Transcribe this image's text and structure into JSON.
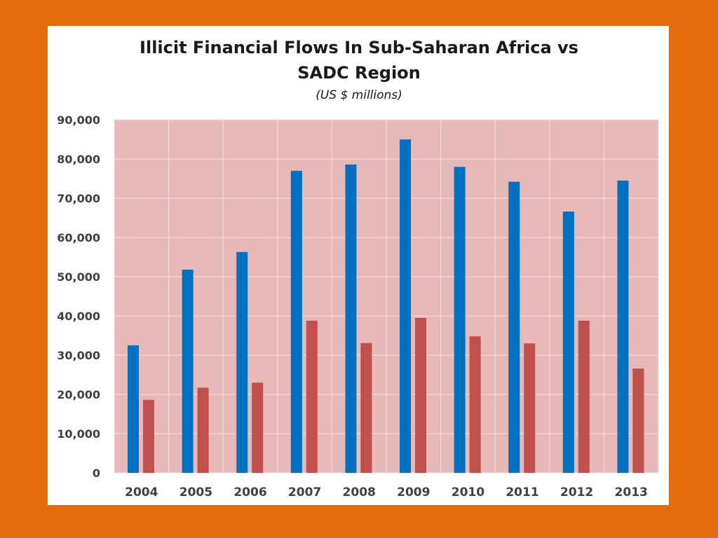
{
  "colors": {
    "background": "#E36C0A",
    "panel": "#FFFFFF",
    "plot_area": "#E6B9B8",
    "gridline": "#F2DCDB",
    "series_ssa": "#0070C0",
    "series_sadc": "#C0504D"
  },
  "chart_data": {
    "type": "bar",
    "title_line1": "Illicit Financial Flows In Sub-Saharan Africa vs",
    "title_line2": "SADC Region",
    "subtitle": "(US $ millions)",
    "xlabel": "",
    "ylabel": "",
    "ylim": [
      0,
      90000
    ],
    "grid": true,
    "legend": "none",
    "categories": [
      "2004",
      "2005",
      "2006",
      "2007",
      "2008",
      "2009",
      "2010",
      "2011",
      "2012",
      "2013"
    ],
    "yticks": [
      "0",
      "10,000",
      "20,000",
      "30,000",
      "40,000",
      "50,000",
      "60,000",
      "70,000",
      "80,000",
      "90,000"
    ],
    "series": [
      {
        "name": "Sub-Saharan Africa",
        "color": "#0070C0",
        "values": [
          32500,
          51800,
          56300,
          77000,
          78600,
          85000,
          78000,
          74200,
          66600,
          74500
        ]
      },
      {
        "name": "SADC Region",
        "color": "#C0504D",
        "values": [
          18600,
          21700,
          23000,
          38800,
          33100,
          39500,
          34800,
          33000,
          38800,
          26600
        ]
      }
    ]
  }
}
